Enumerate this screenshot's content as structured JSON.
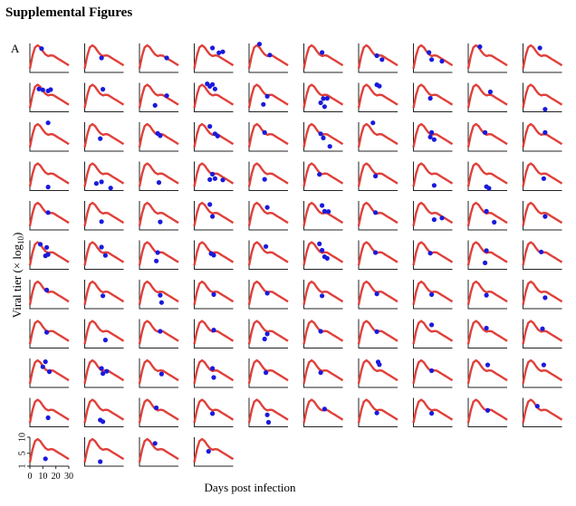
{
  "page": {
    "title": "Supplemental Figures",
    "panel_label": "A"
  },
  "colors": {
    "fit_line": "#e0403a",
    "observed_point": "#1a1adc",
    "axis": "#222222"
  },
  "chart_data": {
    "type": "scatter",
    "description_title": "Viral titer fits per subject",
    "xlabel": "Days post infection",
    "ylabel": "Viral tier (× log10)",
    "ylabel_parts": {
      "main": "Viral tier (× log",
      "sub": "10",
      "end": ")"
    },
    "xlim": [
      0,
      30
    ],
    "ylim": [
      1,
      10
    ],
    "x_ticks": [
      "0",
      "10",
      "20",
      "30"
    ],
    "y_ticks": [
      "1",
      "5",
      "10"
    ],
    "layout": {
      "rows": 11,
      "cols": 10,
      "last_row_panels": 4
    },
    "model_curve": {
      "x": [
        0,
        2,
        4,
        6,
        8,
        10,
        12,
        14,
        16,
        18,
        20,
        22,
        24,
        26,
        28,
        30
      ],
      "y": [
        2.2,
        6.2,
        8.8,
        9.4,
        8.8,
        7.6,
        6.6,
        6.1,
        6.3,
        6.2,
        5.7,
        5.2,
        4.7,
        4.2,
        3.7,
        3.2
      ]
    },
    "panels": [
      {
        "id": 1,
        "points": [
          [
            9,
            8.4
          ]
        ]
      },
      {
        "id": 2,
        "points": [
          [
            13,
            5.5
          ]
        ]
      },
      {
        "id": 3,
        "points": [
          [
            21,
            5.5
          ]
        ]
      },
      {
        "id": 4,
        "points": [
          [
            14,
            8.6
          ],
          [
            19,
            7.1
          ],
          [
            22,
            7.4
          ]
        ]
      },
      {
        "id": 5,
        "points": [
          [
            8,
            9.8
          ],
          [
            16,
            6.4
          ]
        ]
      },
      {
        "id": 6,
        "points": [
          [
            14,
            7.2
          ]
        ]
      },
      {
        "id": 7,
        "points": [
          [
            14,
            6.2
          ],
          [
            18,
            5.0
          ]
        ]
      },
      {
        "id": 8,
        "points": [
          [
            12,
            7.2
          ],
          [
            14,
            5.0
          ],
          [
            22,
            4.5
          ]
        ]
      },
      {
        "id": 9,
        "points": [
          [
            9,
            9.0
          ]
        ]
      },
      {
        "id": 10,
        "points": [
          [
            13,
            8.6
          ]
        ]
      },
      {
        "id": 11,
        "points": [
          [
            7,
            8.1
          ],
          [
            10,
            7.8
          ],
          [
            14,
            7.5
          ],
          [
            16,
            7.9
          ]
        ]
      },
      {
        "id": 12,
        "points": [
          [
            14,
            8.0
          ]
        ]
      },
      {
        "id": 13,
        "points": [
          [
            12,
            3.0
          ],
          [
            21,
            6.0
          ]
        ]
      },
      {
        "id": 14,
        "points": [
          [
            10,
            9.7
          ],
          [
            12,
            8.9
          ],
          [
            14,
            9.5
          ],
          [
            16,
            8.1
          ]
        ]
      },
      {
        "id": 15,
        "points": [
          [
            11,
            3.3
          ],
          [
            14,
            5.8
          ]
        ]
      },
      {
        "id": 16,
        "points": [
          [
            13,
            3.8
          ],
          [
            16,
            2.6
          ],
          [
            18,
            5.2
          ],
          [
            15,
            5.1
          ]
        ]
      },
      {
        "id": 17,
        "points": [
          [
            14,
            9.4
          ],
          [
            16,
            9.0
          ]
        ]
      },
      {
        "id": 18,
        "points": [
          [
            13,
            5.2
          ]
        ]
      },
      {
        "id": 19,
        "points": [
          [
            17,
            7.2
          ]
        ]
      },
      {
        "id": 20,
        "points": [
          [
            17,
            1.8
          ]
        ]
      },
      {
        "id": 21,
        "points": [
          [
            14,
            9.8
          ]
        ]
      },
      {
        "id": 22,
        "points": [
          [
            12,
            4.9
          ]
        ]
      },
      {
        "id": 23,
        "points": [
          [
            14,
            6.5
          ],
          [
            16,
            5.8
          ]
        ]
      },
      {
        "id": 24,
        "points": [
          [
            12,
            8.7
          ],
          [
            16,
            6.4
          ],
          [
            18,
            5.7
          ]
        ]
      },
      {
        "id": 25,
        "points": [
          [
            12,
            6.8
          ]
        ]
      },
      {
        "id": 26,
        "points": [
          [
            13,
            6.4
          ],
          [
            15,
            5.1
          ],
          [
            20,
            2.5
          ]
        ]
      },
      {
        "id": 27,
        "points": [
          [
            11,
            9.8
          ]
        ]
      },
      {
        "id": 28,
        "points": [
          [
            14,
            6.8
          ],
          [
            16,
            4.6
          ],
          [
            13,
            5.4
          ]
        ]
      },
      {
        "id": 29,
        "points": [
          [
            13,
            6.8
          ]
        ]
      },
      {
        "id": 30,
        "points": [
          [
            17,
            6.8
          ]
        ]
      },
      {
        "id": 31,
        "points": [
          [
            14,
            2.1
          ]
        ]
      },
      {
        "id": 32,
        "points": [
          [
            13,
            3.7
          ],
          [
            9,
            3.2
          ],
          [
            20,
            1.8
          ]
        ]
      },
      {
        "id": 33,
        "points": [
          [
            15,
            3.5
          ]
        ]
      },
      {
        "id": 34,
        "points": [
          [
            12,
            4.4
          ],
          [
            14,
            6.1
          ],
          [
            16,
            4.7
          ],
          [
            22,
            4.3
          ]
        ]
      },
      {
        "id": 35,
        "points": [
          [
            12,
            4.5
          ]
        ]
      },
      {
        "id": 36,
        "points": [
          [
            12,
            6.0
          ]
        ]
      },
      {
        "id": 37,
        "points": [
          [
            13,
            5.5
          ]
        ]
      },
      {
        "id": 38,
        "points": [
          [
            16,
            2.6
          ]
        ]
      },
      {
        "id": 39,
        "points": [
          [
            14,
            2.2
          ],
          [
            16,
            1.7
          ]
        ]
      },
      {
        "id": 40,
        "points": [
          [
            16,
            4.7
          ]
        ]
      },
      {
        "id": 41,
        "points": [
          [
            14,
            6.4
          ]
        ]
      },
      {
        "id": 42,
        "points": [
          [
            13,
            3.6
          ]
        ]
      },
      {
        "id": 43,
        "points": [
          [
            16,
            3.5
          ]
        ]
      },
      {
        "id": 44,
        "points": [
          [
            12,
            8.9
          ],
          [
            14,
            5.2
          ]
        ]
      },
      {
        "id": 45,
        "points": [
          [
            14,
            8.0
          ]
        ]
      },
      {
        "id": 46,
        "points": [
          [
            14,
            8.6
          ],
          [
            16,
            6.8
          ],
          [
            19,
            6.7
          ]
        ]
      },
      {
        "id": 47,
        "points": [
          [
            13,
            6.4
          ]
        ]
      },
      {
        "id": 48,
        "points": [
          [
            16,
            4.2
          ],
          [
            22,
            4.7
          ]
        ]
      },
      {
        "id": 49,
        "points": [
          [
            14,
            6.8
          ],
          [
            20,
            3.4
          ]
        ]
      },
      {
        "id": 50,
        "points": [
          [
            17,
            5.2
          ]
        ]
      },
      {
        "id": 51,
        "points": [
          [
            8,
            8.8
          ],
          [
            13,
            7.8
          ],
          [
            12,
            5.2
          ],
          [
            14,
            5.6
          ]
        ]
      },
      {
        "id": 52,
        "points": [
          [
            13,
            7.9
          ],
          [
            16,
            5.3
          ]
        ]
      },
      {
        "id": 53,
        "points": [
          [
            14,
            6.2
          ],
          [
            13,
            3.6
          ]
        ]
      },
      {
        "id": 54,
        "points": [
          [
            13,
            5.9
          ],
          [
            15,
            5.4
          ]
        ]
      },
      {
        "id": 55,
        "points": [
          [
            13,
            8.1
          ]
        ]
      },
      {
        "id": 56,
        "points": [
          [
            12,
            8.9
          ],
          [
            14,
            6.9
          ],
          [
            16,
            4.9
          ],
          [
            18,
            4.4
          ]
        ]
      },
      {
        "id": 57,
        "points": [
          [
            13,
            6.2
          ]
        ]
      },
      {
        "id": 58,
        "points": [
          [
            13,
            6.0
          ]
        ]
      },
      {
        "id": 59,
        "points": [
          [
            14,
            6.8
          ],
          [
            13,
            3.0
          ]
        ]
      },
      {
        "id": 60,
        "points": [
          [
            14,
            6.4
          ]
        ]
      },
      {
        "id": 61,
        "points": [
          [
            13,
            6.8
          ]
        ]
      },
      {
        "id": 62,
        "points": [
          [
            14,
            5.0
          ]
        ]
      },
      {
        "id": 63,
        "points": [
          [
            16,
            5.2
          ],
          [
            17,
            2.9
          ]
        ]
      },
      {
        "id": 64,
        "points": [
          [
            15,
            5.4
          ]
        ]
      },
      {
        "id": 65,
        "points": [
          [
            14,
            5.8
          ]
        ]
      },
      {
        "id": 66,
        "points": [
          [
            14,
            5.0
          ]
        ]
      },
      {
        "id": 67,
        "points": [
          [
            14,
            5.6
          ]
        ]
      },
      {
        "id": 68,
        "points": [
          [
            14,
            5.4
          ]
        ]
      },
      {
        "id": 69,
        "points": [
          [
            14,
            5.2
          ]
        ]
      },
      {
        "id": 70,
        "points": [
          [
            17,
            4.4
          ]
        ]
      },
      {
        "id": 71,
        "points": [
          [
            13,
            5.9
          ]
        ]
      },
      {
        "id": 72,
        "points": [
          [
            16,
            3.5
          ]
        ]
      },
      {
        "id": 73,
        "points": [
          [
            16,
            6.2
          ]
        ]
      },
      {
        "id": 74,
        "points": [
          [
            15,
            6.6
          ]
        ]
      },
      {
        "id": 75,
        "points": [
          [
            14,
            5.4
          ],
          [
            12,
            3.8
          ]
        ]
      },
      {
        "id": 76,
        "points": [
          [
            13,
            6.2
          ]
        ]
      },
      {
        "id": 77,
        "points": [
          [
            14,
            6.1
          ]
        ]
      },
      {
        "id": 78,
        "points": [
          [
            14,
            8.2
          ]
        ]
      },
      {
        "id": 79,
        "points": [
          [
            14,
            7.2
          ]
        ]
      },
      {
        "id": 80,
        "points": [
          [
            15,
            7.0
          ]
        ]
      },
      {
        "id": 81,
        "points": [
          [
            12,
            9.0
          ],
          [
            10,
            7.4
          ],
          [
            15,
            5.9
          ]
        ]
      },
      {
        "id": 82,
        "points": [
          [
            13,
            6.9
          ],
          [
            17,
            6.0
          ],
          [
            14,
            5.3
          ]
        ]
      },
      {
        "id": 83,
        "points": [
          [
            17,
            5.2
          ]
        ]
      },
      {
        "id": 84,
        "points": [
          [
            14,
            6.9
          ],
          [
            15,
            4.1
          ]
        ]
      },
      {
        "id": 85,
        "points": [
          [
            13,
            5.6
          ]
        ]
      },
      {
        "id": 86,
        "points": [
          [
            13,
            5.6
          ]
        ]
      },
      {
        "id": 87,
        "points": [
          [
            15,
            8.9
          ],
          [
            16,
            8.1
          ]
        ]
      },
      {
        "id": 88,
        "points": [
          [
            14,
            6.2
          ]
        ]
      },
      {
        "id": 89,
        "points": [
          [
            15,
            8.0
          ]
        ]
      },
      {
        "id": 90,
        "points": [
          [
            16,
            8.0
          ]
        ]
      },
      {
        "id": 91,
        "points": [
          [
            14,
            3.8
          ]
        ]
      },
      {
        "id": 92,
        "points": [
          [
            12,
            3.1
          ],
          [
            14,
            2.6
          ]
        ]
      },
      {
        "id": 93,
        "points": [
          [
            13,
            6.9
          ]
        ]
      },
      {
        "id": 94,
        "points": [
          [
            14,
            5.1
          ]
        ]
      },
      {
        "id": 95,
        "points": [
          [
            14,
            4.7
          ],
          [
            15,
            2.4
          ]
        ]
      },
      {
        "id": 96,
        "points": [
          [
            16,
            6.5
          ]
        ]
      },
      {
        "id": 97,
        "points": [
          [
            14,
            5.3
          ]
        ]
      },
      {
        "id": 98,
        "points": [
          [
            14,
            5.2
          ]
        ]
      },
      {
        "id": 99,
        "points": [
          [
            15,
            6.1
          ]
        ]
      },
      {
        "id": 100,
        "points": [
          [
            11,
            7.4
          ]
        ]
      },
      {
        "id": 101,
        "points": [
          [
            12,
            3.3
          ]
        ]
      },
      {
        "id": 102,
        "points": [
          [
            12,
            2.4
          ]
        ]
      },
      {
        "id": 103,
        "points": [
          [
            12,
            8.1
          ]
        ]
      },
      {
        "id": 104,
        "points": [
          [
            11,
            5.6
          ]
        ]
      }
    ]
  }
}
